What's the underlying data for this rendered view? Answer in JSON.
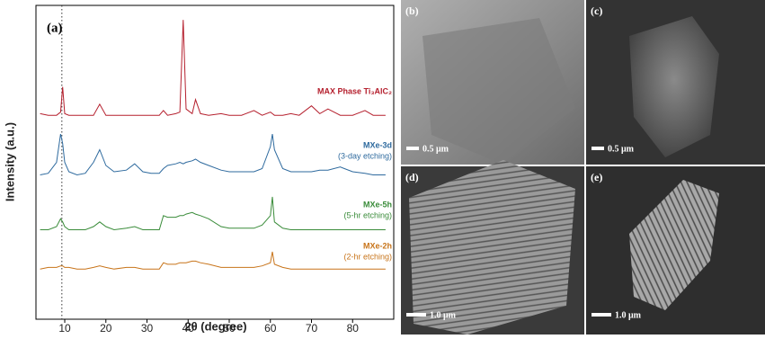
{
  "chart_data": {
    "type": "line",
    "panel_label": "(a)",
    "x_label": "2θ (degree)",
    "y_label": "Intensity (a.u.)",
    "xlim": [
      3,
      90
    ],
    "xticks": [
      10,
      20,
      30,
      40,
      50,
      60,
      70,
      80
    ],
    "ylim": [
      0,
      100
    ],
    "reference_line_x": 9.3,
    "x": [
      4,
      6,
      8,
      9,
      9.5,
      10,
      11,
      13,
      15,
      17,
      18.5,
      20,
      22,
      25,
      27,
      29,
      31,
      33,
      34,
      35,
      37,
      38,
      38.8,
      39.5,
      41,
      41.8,
      43,
      45,
      48,
      50,
      53,
      56,
      58,
      60,
      60.5,
      61,
      63,
      65,
      67,
      70,
      72,
      74,
      77,
      80,
      83,
      85,
      88
    ],
    "series": [
      {
        "name": "MAX Phase Ti₃AlC₂",
        "color": "#b5202e",
        "values": [
          65.5,
          65,
          65,
          66,
          74,
          65.5,
          65,
          65,
          65,
          65,
          68.5,
          65,
          65,
          65,
          65,
          65,
          65,
          65,
          66.5,
          65,
          65.5,
          66,
          95.4,
          67,
          65.5,
          70,
          65.5,
          65,
          65.5,
          65,
          65,
          66.5,
          65,
          66,
          65.5,
          65,
          65,
          65.5,
          65,
          68,
          65.5,
          67,
          65,
          65,
          66.5,
          65,
          65
        ]
      },
      {
        "name": "MXe-3d",
        "note": "(3-day etching)",
        "color": "#2e6a9e",
        "values": [
          46,
          46.5,
          50,
          59,
          56,
          50,
          47,
          46,
          46.5,
          50,
          54,
          49,
          47,
          47.5,
          49.5,
          47,
          46.5,
          46.5,
          48,
          49,
          49.5,
          50,
          49.5,
          50,
          50.5,
          51,
          50,
          49,
          47.5,
          47,
          47,
          47,
          48,
          55,
          59,
          54,
          48,
          47,
          47,
          47,
          47.5,
          47.5,
          48.5,
          47,
          46.5,
          46,
          46
        ]
      },
      {
        "name": "MXe-5h",
        "note": "(5-hr etching)",
        "color": "#3a8c3a",
        "values": [
          28.5,
          28.5,
          29.5,
          32,
          31,
          29.5,
          28.5,
          28.5,
          28.5,
          29.5,
          31,
          29.5,
          28.5,
          29,
          29.5,
          28.5,
          28.5,
          28.5,
          33,
          32.5,
          32.5,
          33,
          33,
          33.5,
          34,
          33.5,
          33,
          32,
          29.5,
          29,
          29,
          29,
          30,
          33,
          39,
          31,
          29,
          28.5,
          28.5,
          28.5,
          28.5,
          28.5,
          28.5,
          28.5,
          28.5,
          28.5,
          28.5
        ]
      },
      {
        "name": "MXe-2h",
        "note": "(2-hr etching)",
        "color": "#c8741a",
        "values": [
          16,
          16.5,
          16.5,
          17,
          17,
          16.5,
          16.5,
          16,
          16,
          16.5,
          17,
          16.5,
          16,
          16.5,
          16.5,
          16,
          16,
          16,
          18,
          17.5,
          17.5,
          18,
          18,
          18,
          18.5,
          18.5,
          18,
          17.5,
          16.5,
          16.5,
          16.5,
          16.5,
          17,
          18,
          21.5,
          17.5,
          16.5,
          16,
          16,
          16,
          16,
          16,
          16,
          16,
          16,
          16,
          16
        ]
      }
    ]
  },
  "panels": [
    {
      "label": "(b)",
      "scale_bar": "0.5 μm"
    },
    {
      "label": "(c)",
      "scale_bar": "0.5 μm"
    },
    {
      "label": "(d)",
      "scale_bar": "1.0 μm"
    },
    {
      "label": "(e)",
      "scale_bar": "1.0 μm"
    }
  ]
}
